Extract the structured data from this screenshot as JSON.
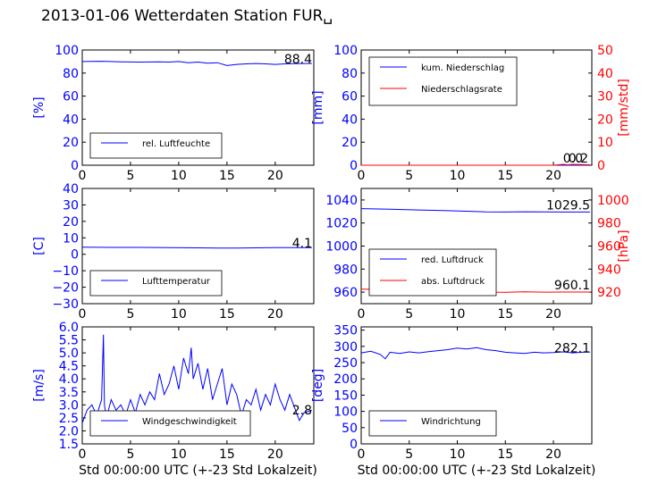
{
  "title": "2013-01-06 Wetterdaten Station FUR␣",
  "colors": {
    "left_axis": "#0000ff",
    "right_axis": "#ff0000",
    "series_blue": "#0000ff",
    "series_red": "#ff0000"
  },
  "chart_data": [
    {
      "type": "line",
      "panel": "humidity",
      "ylabel": "[%]",
      "xlim": [
        0,
        24
      ],
      "ylim": [
        0,
        100
      ],
      "xticks": [
        "0",
        "5",
        "10",
        "15",
        "20"
      ],
      "yticks": [
        "0",
        "20",
        "40",
        "60",
        "80",
        "100"
      ],
      "legend_position": "lower-left",
      "last_value_label": "88.4",
      "series": [
        {
          "name": "rel. Luftfeuchte",
          "color": "#0000ff",
          "x": [
            0,
            2,
            4,
            6,
            8,
            9,
            10,
            11,
            12,
            13,
            14,
            15,
            16,
            17,
            18,
            19,
            20,
            21,
            22,
            23.8
          ],
          "y": [
            90,
            90.2,
            89.8,
            89.5,
            89.8,
            89.5,
            90,
            89,
            89.5,
            88.5,
            89,
            86.5,
            87.5,
            88,
            88.3,
            88,
            87.5,
            88,
            88.2,
            88.4
          ]
        }
      ]
    },
    {
      "type": "line",
      "panel": "precipitation",
      "ylabel": "[mm]",
      "ylabel_right": "[mm/std]",
      "xlim": [
        0,
        24
      ],
      "ylim": [
        0,
        100
      ],
      "ylim_right": [
        0,
        50
      ],
      "xticks": [
        "0",
        "5",
        "10",
        "15",
        "20"
      ],
      "yticks": [
        "0",
        "20",
        "40",
        "60",
        "80",
        "100"
      ],
      "yticks_right": [
        "0",
        "10",
        "20",
        "30",
        "40",
        "50"
      ],
      "legend_position": "upper-left",
      "last_value_labels": [
        "0.0",
        "0.2"
      ],
      "series": [
        {
          "name": "kum. Niederschlag",
          "color": "#0000ff",
          "x": [
            0,
            23.8
          ],
          "y": [
            0,
            0
          ]
        },
        {
          "name": "Niederschlagsrate",
          "color": "#ff0000",
          "x": [
            0,
            20,
            20.5,
            21,
            21.5,
            22,
            23.8
          ],
          "y": [
            0,
            0,
            0.2,
            0.4,
            0.2,
            0.4,
            0.2
          ]
        }
      ]
    },
    {
      "type": "line",
      "panel": "temperature",
      "ylabel": "[C]",
      "xlim": [
        0,
        24
      ],
      "ylim": [
        -30,
        40
      ],
      "xticks": [
        "0",
        "5",
        "10",
        "15",
        "20"
      ],
      "yticks": [
        "−30",
        "−20",
        "−10",
        "0",
        "10",
        "20",
        "30",
        "40"
      ],
      "legend_position": "lower-left",
      "last_value_label": "4.1",
      "series": [
        {
          "name": "Lufttemperatur",
          "color": "#0000ff",
          "x": [
            0,
            3,
            6,
            9,
            12,
            14,
            16,
            18,
            20,
            22,
            23.8
          ],
          "y": [
            4.3,
            4.2,
            4.2,
            4.1,
            3.9,
            3.8,
            3.8,
            3.9,
            4.0,
            4.1,
            4.1
          ]
        }
      ]
    },
    {
      "type": "line",
      "panel": "pressure",
      "ylabel_right": "[hPa]",
      "xlim": [
        0,
        24
      ],
      "ylim": [
        950,
        1050
      ],
      "ylim_right": [
        910,
        1010
      ],
      "xticks": [
        "0",
        "5",
        "10",
        "15",
        "20"
      ],
      "yticks": [
        "960",
        "980",
        "1000",
        "1020",
        "1040"
      ],
      "yticks_right": [
        "920",
        "940",
        "960",
        "980",
        "1000"
      ],
      "legend_position": "lower-left",
      "last_value_labels": [
        "1029.5",
        "960.1"
      ],
      "series": [
        {
          "name": "red. Luftdruck",
          "color": "#0000ff",
          "x": [
            0,
            3,
            6,
            9,
            11,
            13,
            15,
            17,
            19,
            21,
            23.8
          ],
          "y": [
            1032.5,
            1032,
            1031.3,
            1030.7,
            1030.2,
            1029.6,
            1029.5,
            1029.8,
            1029.6,
            1029.5,
            1029.5
          ]
        },
        {
          "name": "abs. Luftdruck",
          "color": "#ff0000",
          "x": [
            0,
            3,
            6,
            9,
            11,
            13,
            15,
            17,
            19,
            21,
            23.8
          ],
          "y": [
            962.6,
            962.3,
            961.7,
            961.1,
            960.6,
            960.0,
            959.9,
            960.2,
            960.0,
            960.1,
            960.1
          ]
        }
      ]
    },
    {
      "type": "line",
      "panel": "wind_speed",
      "ylabel": "[m/s]",
      "xlabel": "Std 00:00:00 UTC (+-23 Std Lokalzeit)",
      "xlim": [
        0,
        24
      ],
      "ylim": [
        1.5,
        6.0
      ],
      "xticks": [
        "0",
        "5",
        "10",
        "15",
        "20"
      ],
      "yticks": [
        "1.5",
        "2.0",
        "2.5",
        "3.0",
        "3.5",
        "4.0",
        "4.5",
        "5.0",
        "5.5",
        "6.0"
      ],
      "legend_position": "lower-center",
      "last_value_label": "2.8",
      "series": [
        {
          "name": "Windgeschwindigkeit",
          "color": "#0000ff",
          "x": [
            0,
            0.5,
            1,
            1.5,
            2,
            2.2,
            2.3,
            2.5,
            3,
            3.5,
            4,
            4.5,
            5,
            5.5,
            6,
            6.5,
            7,
            7.5,
            8,
            8.5,
            9,
            9.5,
            10,
            10.5,
            11,
            11.3,
            11.5,
            12,
            12.5,
            13,
            13.5,
            14,
            14.5,
            15,
            15.5,
            16,
            16.5,
            17,
            17.5,
            18,
            18.5,
            19,
            19.5,
            20,
            20.5,
            21,
            21.5,
            22,
            22.5,
            23,
            23.8
          ],
          "y": [
            2.3,
            2.8,
            3.0,
            2.6,
            3.2,
            5.7,
            3.0,
            2.5,
            3.2,
            2.8,
            3.0,
            2.6,
            3.2,
            2.7,
            3.4,
            3.0,
            3.5,
            3.2,
            4.2,
            3.4,
            3.8,
            4.5,
            3.6,
            4.8,
            4.2,
            5.2,
            4.0,
            4.6,
            3.6,
            4.4,
            3.2,
            3.8,
            4.4,
            3.0,
            3.8,
            3.4,
            2.6,
            3.2,
            3.0,
            3.6,
            2.8,
            3.4,
            3.0,
            3.8,
            3.2,
            2.8,
            3.4,
            2.9,
            2.4,
            2.7,
            2.8
          ]
        }
      ]
    },
    {
      "type": "line",
      "panel": "wind_direction",
      "ylabel": "[deg]",
      "xlabel": "Std 00:00:00 UTC (+-23 Std Lokalzeit)",
      "xlim": [
        0,
        24
      ],
      "ylim": [
        0,
        360
      ],
      "xticks": [
        "0",
        "5",
        "10",
        "15",
        "20"
      ],
      "yticks": [
        "0",
        "50",
        "100",
        "150",
        "200",
        "250",
        "300",
        "350"
      ],
      "legend_position": "lower-left",
      "last_value_label": "282.1",
      "series": [
        {
          "name": "Windrichtung",
          "color": "#0000ff",
          "x": [
            0,
            1,
            2,
            2.5,
            3,
            4,
            5,
            6,
            7,
            8,
            9,
            10,
            11,
            12,
            13,
            14,
            15,
            16,
            17,
            18,
            19,
            20,
            21,
            22,
            23,
            23.8
          ],
          "y": [
            280,
            285,
            275,
            262,
            282,
            278,
            283,
            280,
            284,
            287,
            290,
            295,
            292,
            296,
            290,
            287,
            282,
            280,
            278,
            282,
            280,
            281,
            283,
            280,
            282,
            282.1
          ]
        }
      ]
    }
  ]
}
